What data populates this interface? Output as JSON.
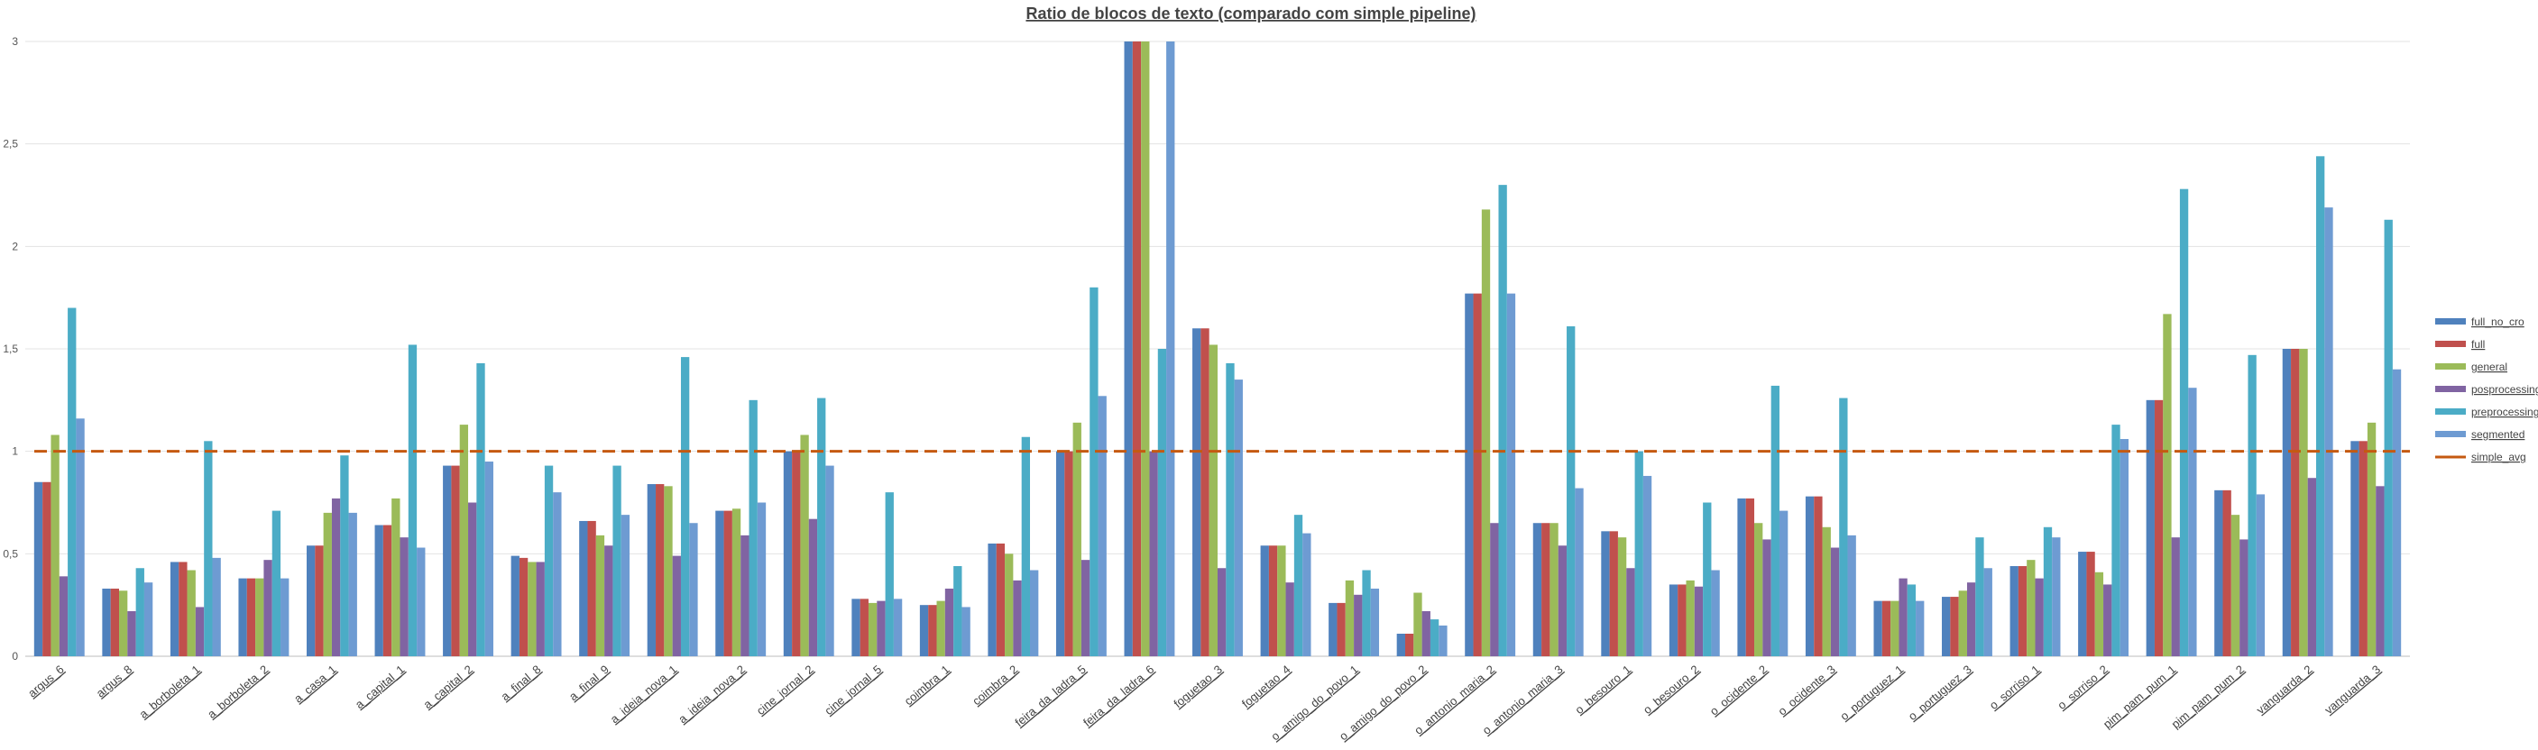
{
  "chart_data": {
    "type": "bar",
    "title": "Ratio de blocos de texto (comparado com simple pipeline)",
    "xlabel": "",
    "ylabel": "",
    "ylim": [
      0,
      3
    ],
    "yticks": [
      "0",
      "0,5",
      "1",
      "1,5",
      "2",
      "2,5",
      "3"
    ],
    "ytick_values": [
      0,
      0.5,
      1,
      1.5,
      2,
      2.5,
      3
    ],
    "grid": true,
    "legend_position": "right",
    "categories": [
      "argus_6",
      "argus_8",
      "a_borboleta_1",
      "a_borboleta_2",
      "a_casa_1",
      "a_capital_1",
      "a_capital_2",
      "a_final_8",
      "a_final_9",
      "a_ideia_nova_1",
      "a_ideia_nova_2",
      "cine_jornal_2",
      "cine_jornal_5",
      "coimbra_1",
      "coimbra_2",
      "feira_da_ladra_5",
      "feira_da_ladra_6",
      "foguetao_3",
      "foguetao_4",
      "o_amigo_do_povo_1",
      "o_amigo_do_povo_2",
      "o_antonio_maria_2",
      "o_antonio_maria_3",
      "o_besouro_1",
      "o_besouro_2",
      "o_ocidente_2",
      "o_ocidente_3",
      "o_portuguez_1",
      "o_portuguez_3",
      "o_sorriso_1",
      "o_sorriso_2",
      "pim_pam_pum_1",
      "pim_pam_pum_2",
      "vanguarda_2",
      "vanguarda_3"
    ],
    "series": [
      {
        "name": "full_no_cro",
        "color": "#4f81bd",
        "values": [
          0.85,
          0.33,
          0.46,
          0.38,
          0.54,
          0.64,
          0.93,
          0.49,
          0.66,
          0.84,
          0.71,
          1.0,
          0.28,
          0.25,
          0.55,
          1.0,
          3.0,
          1.6,
          0.54,
          0.26,
          0.11,
          1.77,
          0.65,
          0.61,
          0.35,
          0.77,
          0.78,
          0.27,
          0.29,
          0.44,
          0.51,
          1.25,
          0.81,
          1.5,
          1.05
        ]
      },
      {
        "name": "full",
        "color": "#c0504d",
        "values": [
          0.85,
          0.33,
          0.46,
          0.38,
          0.54,
          0.64,
          0.93,
          0.48,
          0.66,
          0.84,
          0.71,
          1.0,
          0.28,
          0.25,
          0.55,
          1.0,
          3.0,
          1.6,
          0.54,
          0.26,
          0.11,
          1.77,
          0.65,
          0.61,
          0.35,
          0.77,
          0.78,
          0.27,
          0.29,
          0.44,
          0.51,
          1.25,
          0.81,
          1.5,
          1.05
        ]
      },
      {
        "name": "general",
        "color": "#9bbb59",
        "values": [
          1.08,
          0.32,
          0.42,
          0.38,
          0.7,
          0.77,
          1.13,
          0.46,
          0.59,
          0.83,
          0.72,
          1.08,
          0.26,
          0.27,
          0.5,
          1.14,
          3.0,
          1.52,
          0.54,
          0.37,
          0.31,
          2.18,
          0.65,
          0.58,
          0.37,
          0.65,
          0.63,
          0.27,
          0.32,
          0.47,
          0.41,
          1.67,
          0.69,
          1.5,
          1.14
        ]
      },
      {
        "name": "posprocessing",
        "color": "#8064a2",
        "values": [
          0.39,
          0.22,
          0.24,
          0.47,
          0.77,
          0.58,
          0.75,
          0.46,
          0.54,
          0.49,
          0.59,
          0.67,
          0.27,
          0.33,
          0.37,
          0.47,
          1.0,
          0.43,
          0.36,
          0.3,
          0.22,
          0.65,
          0.54,
          0.43,
          0.34,
          0.57,
          0.53,
          0.38,
          0.36,
          0.38,
          0.35,
          0.58,
          0.57,
          0.87,
          0.83
        ]
      },
      {
        "name": "preprocessing",
        "color": "#4bacc6",
        "values": [
          1.7,
          0.43,
          1.05,
          0.71,
          0.98,
          1.52,
          1.43,
          0.93,
          0.93,
          1.46,
          1.25,
          1.26,
          0.8,
          0.44,
          1.07,
          1.8,
          1.5,
          1.43,
          0.69,
          0.42,
          0.18,
          2.3,
          1.61,
          1.0,
          0.75,
          1.32,
          1.26,
          0.35,
          0.58,
          0.63,
          1.13,
          2.28,
          1.47,
          2.44,
          2.13
        ]
      },
      {
        "name": "segmented",
        "color": "#6e9bd2",
        "values": [
          1.16,
          0.36,
          0.48,
          0.38,
          0.7,
          0.53,
          0.95,
          0.8,
          0.69,
          0.65,
          0.75,
          0.93,
          0.28,
          0.24,
          0.42,
          1.27,
          3.0,
          1.35,
          0.6,
          0.33,
          0.15,
          1.77,
          0.82,
          0.88,
          0.42,
          0.71,
          0.59,
          0.27,
          0.43,
          0.58,
          1.06,
          1.31,
          0.79,
          2.19,
          1.4
        ]
      }
    ],
    "reference_line": {
      "name": "simple_avg",
      "value": 1.0,
      "color": "#c55a11"
    }
  }
}
